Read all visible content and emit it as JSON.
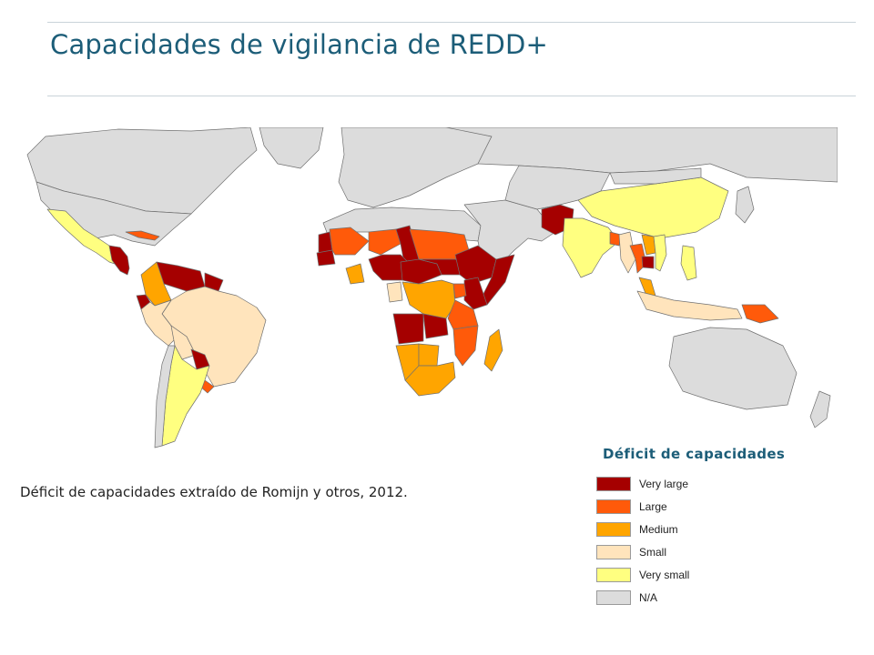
{
  "header": {
    "title": "Capacidades de vigilancia de REDD+"
  },
  "caption": "Déficit de capacidades extraído de Romijn y otros, 2012.",
  "legend": {
    "title": "Déficit de capacidades",
    "items": [
      {
        "label": "Very large",
        "color": "#a50000"
      },
      {
        "label": "Large",
        "color": "#ff5a0a"
      },
      {
        "label": "Medium",
        "color": "#ffa500"
      },
      {
        "label": "Small",
        "color": "#ffe4bc"
      },
      {
        "label": "Very small",
        "color": "#ffff80"
      },
      {
        "label": "N/A",
        "color": "#dcdcdc"
      }
    ]
  },
  "map": {
    "background": "#ffffff",
    "border_color": "#707070",
    "regions": [
      {
        "name": "Canada",
        "category": "N/A"
      },
      {
        "name": "United States",
        "category": "N/A"
      },
      {
        "name": "Greenland",
        "category": "N/A"
      },
      {
        "name": "Mexico",
        "category": "Very small"
      },
      {
        "name": "Central America",
        "category": "Very large"
      },
      {
        "name": "Cuba",
        "category": "Large"
      },
      {
        "name": "Venezuela",
        "category": "Very large"
      },
      {
        "name": "Colombia",
        "category": "Medium"
      },
      {
        "name": "Guyana",
        "category": "Very large"
      },
      {
        "name": "Ecuador",
        "category": "Very large"
      },
      {
        "name": "Brazil",
        "category": "Small"
      },
      {
        "name": "Peru",
        "category": "Small"
      },
      {
        "name": "Bolivia",
        "category": "Small"
      },
      {
        "name": "Paraguay",
        "category": "Very large"
      },
      {
        "name": "Uruguay",
        "category": "Large"
      },
      {
        "name": "Argentina",
        "category": "Very small"
      },
      {
        "name": "Chile",
        "category": "N/A"
      },
      {
        "name": "Europe",
        "category": "N/A"
      },
      {
        "name": "Russia",
        "category": "N/A"
      },
      {
        "name": "North Africa",
        "category": "N/A"
      },
      {
        "name": "Middle East",
        "category": "N/A"
      },
      {
        "name": "Central Asia",
        "category": "N/A"
      },
      {
        "name": "Mauritania",
        "category": "Very large"
      },
      {
        "name": "Mali",
        "category": "Large"
      },
      {
        "name": "Senegal",
        "category": "Very large"
      },
      {
        "name": "Niger",
        "category": "Large"
      },
      {
        "name": "Chad",
        "category": "Very large"
      },
      {
        "name": "Sudan",
        "category": "Large"
      },
      {
        "name": "Nigeria",
        "category": "Very large"
      },
      {
        "name": "Ghana",
        "category": "Medium"
      },
      {
        "name": "Cameroon",
        "category": "Very large"
      },
      {
        "name": "Central African Republic",
        "category": "Very large"
      },
      {
        "name": "Ethiopia",
        "category": "Very large"
      },
      {
        "name": "Somalia",
        "category": "Very large"
      },
      {
        "name": "Kenya",
        "category": "Very large"
      },
      {
        "name": "Gabon",
        "category": "Small"
      },
      {
        "name": "DR Congo",
        "category": "Medium"
      },
      {
        "name": "Uganda",
        "category": "Large"
      },
      {
        "name": "Angola",
        "category": "Very large"
      },
      {
        "name": "Zambia",
        "category": "Very large"
      },
      {
        "name": "Tanzania",
        "category": "Large"
      },
      {
        "name": "Mozambique",
        "category": "Large"
      },
      {
        "name": "Namibia",
        "category": "Medium"
      },
      {
        "name": "Botswana",
        "category": "Medium"
      },
      {
        "name": "South Africa",
        "category": "Medium"
      },
      {
        "name": "Madagascar",
        "category": "Medium"
      },
      {
        "name": "Pakistan",
        "category": "Very large"
      },
      {
        "name": "India",
        "category": "Very small"
      },
      {
        "name": "China",
        "category": "Very small"
      },
      {
        "name": "Mongolia",
        "category": "N/A"
      },
      {
        "name": "Bangladesh",
        "category": "Large"
      },
      {
        "name": "Myanmar",
        "category": "Small"
      },
      {
        "name": "Thailand",
        "category": "Large"
      },
      {
        "name": "Laos",
        "category": "Medium"
      },
      {
        "name": "Cambodia",
        "category": "Very large"
      },
      {
        "name": "Vietnam",
        "category": "Very small"
      },
      {
        "name": "Malaysia",
        "category": "Medium"
      },
      {
        "name": "Indonesia",
        "category": "Small"
      },
      {
        "name": "Philippines",
        "category": "Very small"
      },
      {
        "name": "Papua New Guinea",
        "category": "Large"
      },
      {
        "name": "Japan",
        "category": "N/A"
      },
      {
        "name": "Australia",
        "category": "N/A"
      },
      {
        "name": "New Zealand",
        "category": "N/A"
      }
    ]
  }
}
